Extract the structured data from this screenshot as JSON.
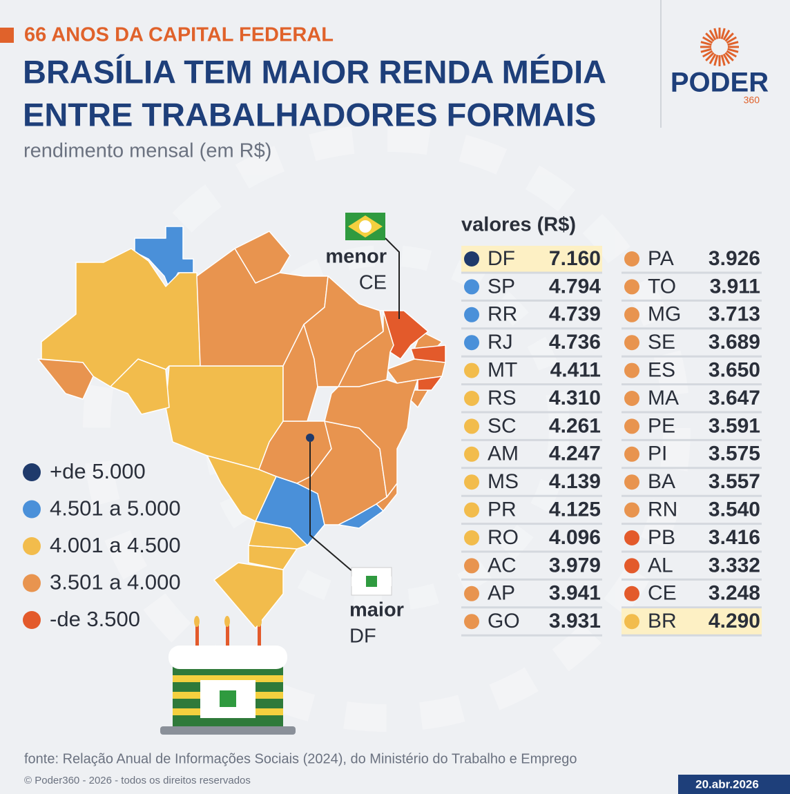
{
  "header": {
    "kicker": "66 ANOS DA CAPITAL FEDERAL",
    "title_lines": [
      "BRASÍLIA TEM MAIOR RENDA MÉDIA",
      "ENTRE TRABALHADORES FORMAIS"
    ],
    "subtitle": "rendimento mensal (em R$)"
  },
  "logo": {
    "name": "PODER",
    "number": "360"
  },
  "map": {
    "legend": [
      {
        "label": "+de 5.000",
        "color": "#1f3a6b"
      },
      {
        "label": "4.501 a 5.000",
        "color": "#4a90d9"
      },
      {
        "label": "4.001 a 4.500",
        "color": "#f2bc4c"
      },
      {
        "label": "3.501 a 4.000",
        "color": "#e8944f"
      },
      {
        "label": "-de 3.500",
        "color": "#e35a2b"
      }
    ],
    "callouts": [
      {
        "label": "menor",
        "state": "CE"
      },
      {
        "label": "maior",
        "state": "DF"
      }
    ]
  },
  "table": {
    "title": "valores (R$)",
    "rows": [
      {
        "state": "DF",
        "value": "7.160",
        "color": "#1f3a6b",
        "highlight": true
      },
      {
        "state": "SP",
        "value": "4.794",
        "color": "#4a90d9"
      },
      {
        "state": "RR",
        "value": "4.739",
        "color": "#4a90d9"
      },
      {
        "state": "RJ",
        "value": "4.736",
        "color": "#4a90d9"
      },
      {
        "state": "MT",
        "value": "4.411",
        "color": "#f2bc4c"
      },
      {
        "state": "RS",
        "value": "4.310",
        "color": "#f2bc4c"
      },
      {
        "state": "SC",
        "value": "4.261",
        "color": "#f2bc4c"
      },
      {
        "state": "AM",
        "value": "4.247",
        "color": "#f2bc4c"
      },
      {
        "state": "MS",
        "value": "4.139",
        "color": "#f2bc4c"
      },
      {
        "state": "PR",
        "value": "4.125",
        "color": "#f2bc4c"
      },
      {
        "state": "RO",
        "value": "4.096",
        "color": "#f2bc4c"
      },
      {
        "state": "AC",
        "value": "3.979",
        "color": "#e8944f"
      },
      {
        "state": "AP",
        "value": "3.941",
        "color": "#e8944f"
      },
      {
        "state": "GO",
        "value": "3.931",
        "color": "#e8944f"
      },
      {
        "state": "PA",
        "value": "3.926",
        "color": "#e8944f"
      },
      {
        "state": "TO",
        "value": "3.911",
        "color": "#e8944f"
      },
      {
        "state": "MG",
        "value": "3.713",
        "color": "#e8944f"
      },
      {
        "state": "SE",
        "value": "3.689",
        "color": "#e8944f"
      },
      {
        "state": "ES",
        "value": "3.650",
        "color": "#e8944f"
      },
      {
        "state": "MA",
        "value": "3.647",
        "color": "#e8944f"
      },
      {
        "state": "PE",
        "value": "3.591",
        "color": "#e8944f"
      },
      {
        "state": "PI",
        "value": "3.575",
        "color": "#e8944f"
      },
      {
        "state": "BA",
        "value": "3.557",
        "color": "#e8944f"
      },
      {
        "state": "RN",
        "value": "3.540",
        "color": "#e8944f"
      },
      {
        "state": "PB",
        "value": "3.416",
        "color": "#e35a2b"
      },
      {
        "state": "AL",
        "value": "3.332",
        "color": "#e35a2b"
      },
      {
        "state": "CE",
        "value": "3.248",
        "color": "#e35a2b"
      },
      {
        "state": "BR",
        "value": "4.290",
        "color": "#f2bc4c",
        "highlight": true
      }
    ]
  },
  "footer": {
    "source": "fonte: Relação Anual de Informações Sociais (2024), do Ministério do Trabalho e Emprego",
    "copyright": "© Poder360 - 2026 - todos os direitos reservados",
    "date": "20.abr.2026"
  }
}
